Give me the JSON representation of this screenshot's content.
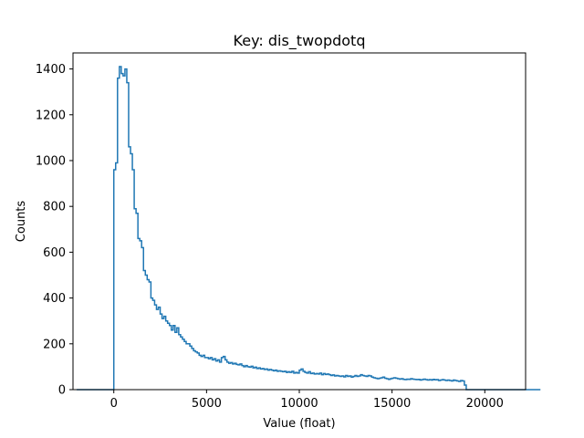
{
  "chart_data": {
    "type": "histogram-step",
    "title": "Key: dis_twopdotq",
    "xlabel": "Value (float)",
    "ylabel": "Counts",
    "xlim": [
      -2200,
      22200
    ],
    "ylim": [
      0,
      1470
    ],
    "xticks": [
      0,
      5000,
      10000,
      15000,
      20000
    ],
    "xtick_labels": [
      "0",
      "5000",
      "10000",
      "15000",
      "20000"
    ],
    "yticks": [
      0,
      200,
      400,
      600,
      800,
      1000,
      1200,
      1400
    ],
    "ytick_labels": [
      "0",
      "200",
      "400",
      "600",
      "800",
      "1000",
      "1200",
      "1400"
    ],
    "series_color": "#1f77b4",
    "bin_start": -2000,
    "bin_width": 100,
    "counts": [
      0,
      0,
      0,
      0,
      0,
      0,
      0,
      0,
      0,
      0,
      0,
      0,
      0,
      0,
      0,
      0,
      0,
      0,
      0,
      0,
      960,
      990,
      1360,
      1410,
      1380,
      1370,
      1400,
      1340,
      1060,
      1030,
      960,
      790,
      770,
      660,
      650,
      620,
      520,
      500,
      480,
      470,
      400,
      390,
      370,
      350,
      360,
      330,
      310,
      320,
      300,
      290,
      280,
      260,
      280,
      250,
      270,
      240,
      230,
      220,
      210,
      200,
      200,
      190,
      180,
      170,
      165,
      160,
      150,
      145,
      150,
      140,
      140,
      135,
      140,
      130,
      135,
      125,
      130,
      120,
      140,
      145,
      130,
      120,
      115,
      118,
      112,
      115,
      110,
      108,
      112,
      105,
      100,
      105,
      100,
      98,
      102,
      95,
      98,
      92,
      95,
      90,
      92,
      88,
      90,
      85,
      88,
      85,
      82,
      85,
      80,
      82,
      80,
      78,
      80,
      75,
      78,
      75,
      80,
      72,
      75,
      72,
      85,
      90,
      80,
      75,
      72,
      78,
      70,
      72,
      68,
      70,
      68,
      72,
      65,
      70,
      66,
      68,
      65,
      62,
      64,
      60,
      62,
      60,
      58,
      60,
      56,
      62,
      58,
      60,
      55,
      58,
      62,
      58,
      60,
      65,
      62,
      60,
      58,
      62,
      60,
      55,
      52,
      50,
      48,
      50,
      52,
      55,
      50,
      48,
      45,
      48,
      50,
      52,
      50,
      48,
      46,
      48,
      45,
      44,
      46,
      45,
      48,
      46,
      45,
      44,
      45,
      42,
      44,
      46,
      44,
      42,
      44,
      42,
      45,
      43,
      44,
      40,
      42,
      44,
      42,
      40,
      42,
      40,
      38,
      42,
      40,
      38,
      36,
      40,
      38,
      20,
      0,
      0,
      0,
      0,
      0,
      0,
      0,
      0,
      0,
      0,
      0,
      0,
      0,
      0,
      0,
      0,
      0,
      0,
      0,
      0,
      0,
      0,
      0,
      0,
      0,
      0,
      0,
      0,
      0,
      0,
      0,
      0,
      0,
      0,
      0,
      0,
      0,
      0,
      0,
      0
    ]
  }
}
